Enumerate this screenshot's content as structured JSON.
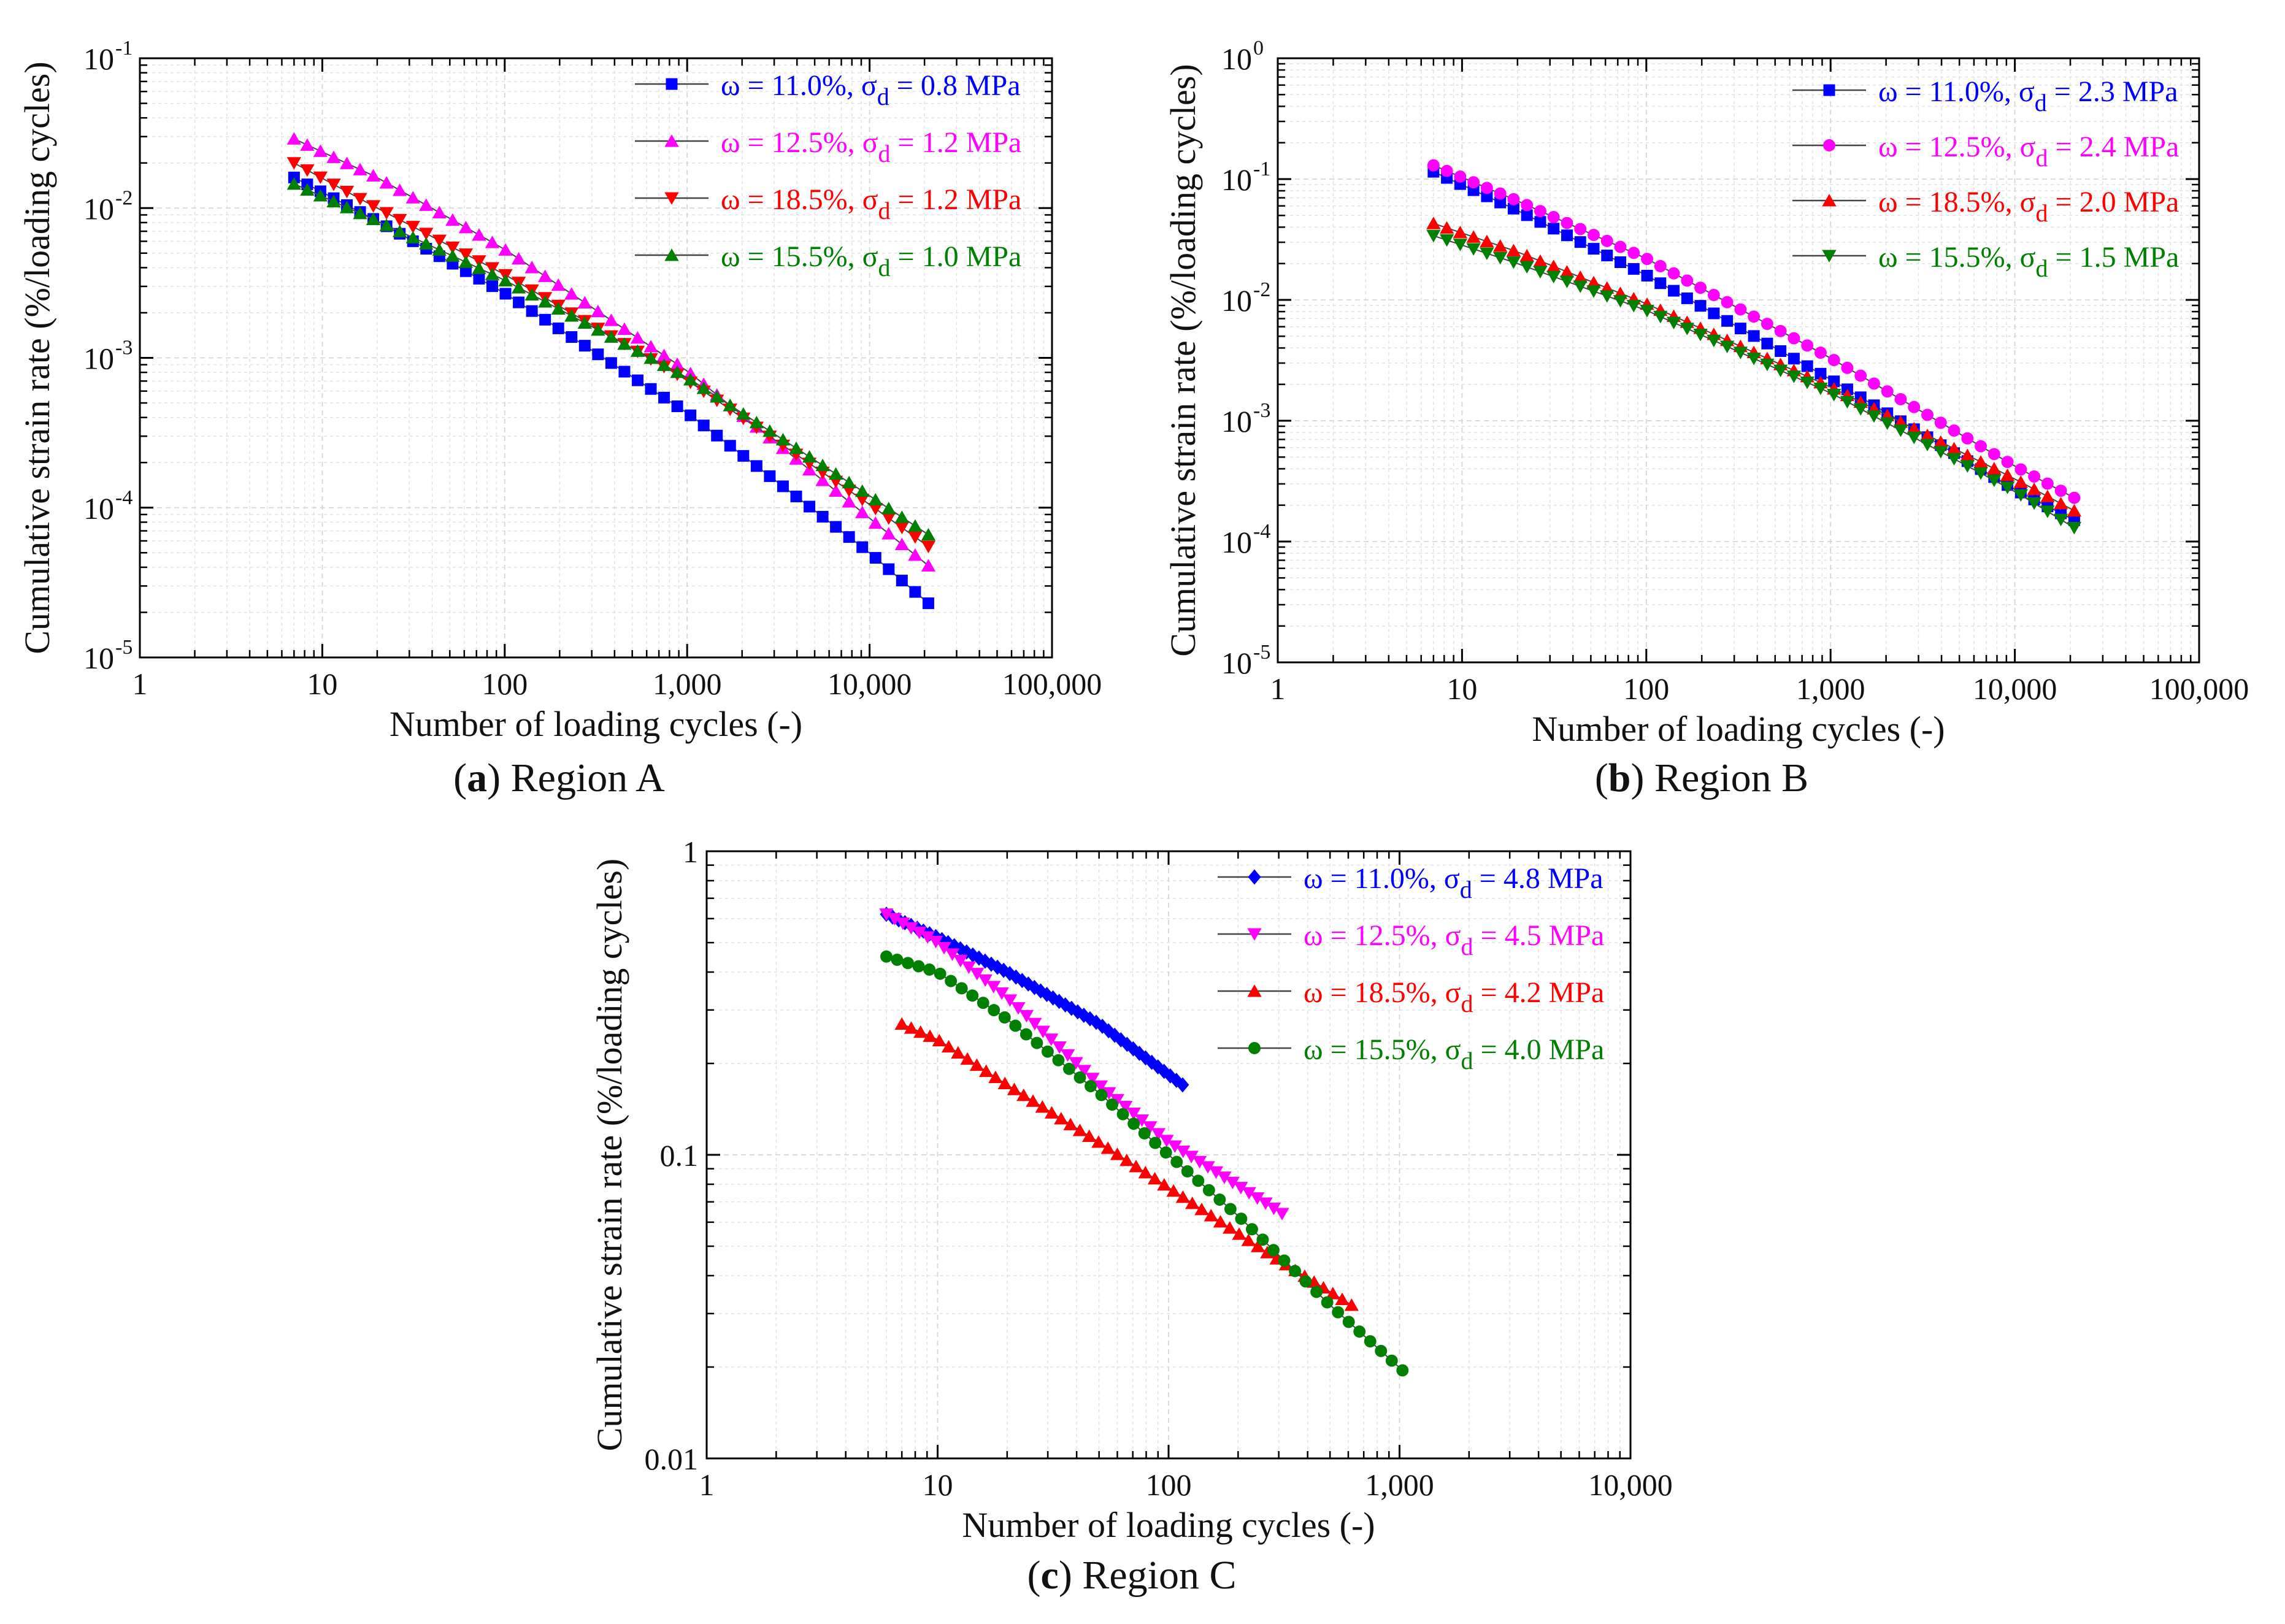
{
  "chart_data": [
    {
      "id": "a",
      "type": "scatter",
      "caption_label": "a",
      "caption_text": "Region A",
      "xlabel": "Number of loading cycles (-)",
      "ylabel": "Cumulative strain rate (%/loading cycles)",
      "xscale": "log",
      "yscale": "log",
      "xlim": [
        1,
        100000
      ],
      "ylim": [
        1e-05,
        0.1
      ],
      "xticks": [
        {
          "value": 1,
          "label": "1"
        },
        {
          "value": 10,
          "label": "10"
        },
        {
          "value": 100,
          "label": "100"
        },
        {
          "value": 1000,
          "label": "1,000"
        },
        {
          "value": 10000,
          "label": "10,000"
        },
        {
          "value": 100000,
          "label": "100,000"
        }
      ],
      "yticks": [
        {
          "value": 1e-05,
          "base": "10",
          "exp": "-5"
        },
        {
          "value": 0.0001,
          "base": "10",
          "exp": "-4"
        },
        {
          "value": 0.001,
          "base": "10",
          "exp": "-3"
        },
        {
          "value": 0.01,
          "base": "10",
          "exp": "-2"
        },
        {
          "value": 0.1,
          "base": "10",
          "exp": "-1"
        }
      ],
      "grid": true,
      "legend_position": "top-right",
      "series": [
        {
          "legend_main": "ω = 11.0%, σ",
          "legend_sub": "d",
          "legend_tail": " = 0.8 MPa",
          "color": "#0000ff",
          "marker": "square",
          "x": [
            7,
            20,
            100,
            1000,
            10000,
            21000
          ],
          "y": [
            0.016,
            0.0082,
            0.0027,
            0.00043,
            5e-05,
            2.3e-05
          ]
        },
        {
          "legend_main": "ω = 12.5%, σ",
          "legend_sub": "d",
          "legend_tail": " = 1.2 MPa",
          "color": "#ff00ff",
          "marker": "triangle-up",
          "x": [
            7,
            20,
            100,
            1000,
            10000,
            21000
          ],
          "y": [
            0.029,
            0.016,
            0.0053,
            0.00082,
            8.5e-05,
            4.1e-05
          ]
        },
        {
          "legend_main": "ω = 18.5%, σ",
          "legend_sub": "d",
          "legend_tail": " = 1.2 MPa",
          "color": "#ff0000",
          "marker": "triangle-down",
          "x": [
            7,
            20,
            100,
            1000,
            10000,
            21000
          ],
          "y": [
            0.02,
            0.01,
            0.0036,
            0.00071,
            0.000105,
            5.5e-05
          ]
        },
        {
          "legend_main": "ω = 15.5%, σ",
          "legend_sub": "d",
          "legend_tail": " = 1.0 MPa",
          "color": "#008000",
          "marker": "triangle-up",
          "x": [
            7,
            20,
            100,
            1000,
            10000,
            21000
          ],
          "y": [
            0.0145,
            0.0082,
            0.0033,
            0.00074,
            0.00012,
            6.6e-05
          ]
        }
      ]
    },
    {
      "id": "b",
      "type": "scatter",
      "caption_label": "b",
      "caption_text": "Region B",
      "xlabel": "Number of loading cycles (-)",
      "ylabel": "Cumulative strain rate (%/loading cycles)",
      "xscale": "log",
      "yscale": "log",
      "xlim": [
        1,
        100000
      ],
      "ylim": [
        1e-05,
        1
      ],
      "xticks": [
        {
          "value": 1,
          "label": "1"
        },
        {
          "value": 10,
          "label": "10"
        },
        {
          "value": 100,
          "label": "100"
        },
        {
          "value": 1000,
          "label": "1,000"
        },
        {
          "value": 10000,
          "label": "10,000"
        },
        {
          "value": 100000,
          "label": "100,000"
        }
      ],
      "yticks": [
        {
          "value": 1e-05,
          "base": "10",
          "exp": "-5"
        },
        {
          "value": 0.0001,
          "base": "10",
          "exp": "-4"
        },
        {
          "value": 0.001,
          "base": "10",
          "exp": "-3"
        },
        {
          "value": 0.01,
          "base": "10",
          "exp": "-2"
        },
        {
          "value": 0.1,
          "base": "10",
          "exp": "-1"
        },
        {
          "value": 1,
          "base": "10",
          "exp": "0"
        }
      ],
      "grid": true,
      "legend_position": "top-right",
      "series": [
        {
          "legend_main": "ω = 11.0%, σ",
          "legend_sub": "d",
          "legend_tail": " = 2.3 MPa",
          "color": "#0000ff",
          "marker": "square",
          "x": [
            7,
            20,
            100,
            1000,
            10000,
            21000
          ],
          "y": [
            0.115,
            0.055,
            0.016,
            0.0022,
            0.00027,
            0.00015
          ]
        },
        {
          "legend_main": "ω = 12.5%, σ",
          "legend_sub": "d",
          "legend_tail": " = 2.4 MPa",
          "color": "#ff00ff",
          "marker": "circle",
          "x": [
            7,
            20,
            100,
            1000,
            10000,
            21000
          ],
          "y": [
            0.13,
            0.066,
            0.022,
            0.0033,
            0.00042,
            0.00023
          ]
        },
        {
          "legend_main": "ω = 18.5%, σ",
          "legend_sub": "d",
          "legend_tail": " = 2.0 MPa",
          "color": "#ff0000",
          "marker": "triangle-up",
          "x": [
            7,
            20,
            100,
            1000,
            10000,
            21000
          ],
          "y": [
            0.043,
            0.025,
            0.0093,
            0.0019,
            0.00033,
            0.00018
          ]
        },
        {
          "legend_main": "ω = 15.5%, σ",
          "legend_sub": "d",
          "legend_tail": " = 1.5 MPa",
          "color": "#008000",
          "marker": "triangle-down",
          "x": [
            7,
            20,
            100,
            1000,
            10000,
            21000
          ],
          "y": [
            0.034,
            0.02,
            0.0082,
            0.0017,
            0.00026,
            0.00013
          ]
        }
      ]
    },
    {
      "id": "c",
      "type": "scatter",
      "caption_label": "c",
      "caption_text": "Region C",
      "xlabel": "Number of loading cycles (-)",
      "ylabel": "Cumulative strain rate (%/loading cycles)",
      "xscale": "log",
      "yscale": "log",
      "xlim": [
        1,
        10000
      ],
      "ylim": [
        0.01,
        1
      ],
      "xticks": [
        {
          "value": 1,
          "label": "1"
        },
        {
          "value": 10,
          "label": "10"
        },
        {
          "value": 100,
          "label": "100"
        },
        {
          "value": 1000,
          "label": "1,000"
        },
        {
          "value": 10000,
          "label": "10,000"
        }
      ],
      "yticks": [
        {
          "value": 0.01,
          "base": "0.01",
          "exp": ""
        },
        {
          "value": 0.1,
          "base": "0.1",
          "exp": ""
        },
        {
          "value": 1,
          "base": "1",
          "exp": ""
        }
      ],
      "grid": true,
      "legend_position": "top-right",
      "series": [
        {
          "legend_main": "ω = 11.0%, σ",
          "legend_sub": "d",
          "legend_tail": " = 4.8 MPa",
          "color": "#0000ff",
          "marker": "diamond",
          "x": [
            6,
            10,
            20,
            50,
            115
          ],
          "y": [
            0.62,
            0.52,
            0.4,
            0.27,
            0.17
          ]
        },
        {
          "legend_main": "ω = 12.5%, σ",
          "legend_sub": "d",
          "legend_tail": " = 4.5 MPa",
          "color": "#ff00ff",
          "marker": "triangle-down",
          "x": [
            6,
            10,
            20,
            50,
            100,
            310
          ],
          "y": [
            0.62,
            0.5,
            0.33,
            0.17,
            0.11,
            0.064
          ]
        },
        {
          "legend_main": "ω = 18.5%, σ",
          "legend_sub": "d",
          "legend_tail": " = 4.2 MPa",
          "color": "#ff0000",
          "marker": "triangle-up",
          "x": [
            7,
            10,
            20,
            50,
            100,
            300,
            620
          ],
          "y": [
            0.27,
            0.24,
            0.17,
            0.11,
            0.078,
            0.045,
            0.032
          ]
        },
        {
          "legend_main": "ω = 15.5%, σ",
          "legend_sub": "d",
          "legend_tail": " = 4.0 MPa",
          "color": "#008000",
          "marker": "circle",
          "x": [
            6,
            10,
            20,
            50,
            100,
            200,
            500,
            1030
          ],
          "y": [
            0.45,
            0.4,
            0.28,
            0.16,
            0.1,
            0.063,
            0.032,
            0.0195
          ]
        }
      ]
    }
  ]
}
